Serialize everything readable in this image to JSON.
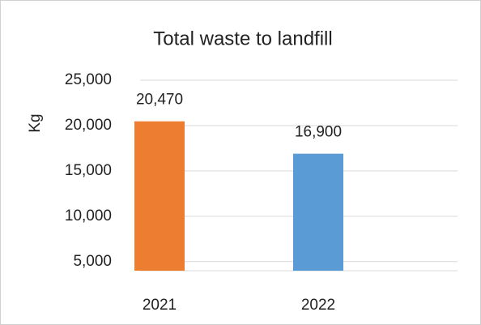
{
  "chart_data": {
    "type": "bar",
    "title": "Total waste to landfill",
    "y_label": "Kg",
    "categories": [
      "2021",
      "2022"
    ],
    "values": [
      20470,
      16900
    ],
    "value_labels": [
      "20,470",
      "16,900"
    ],
    "colors": [
      "#ed7d31",
      "#5b9bd5"
    ],
    "ylim": [
      4000,
      25000
    ],
    "yticks": [
      {
        "value": 5000,
        "label": "5,000"
      },
      {
        "value": 10000,
        "label": "10,000"
      },
      {
        "value": 15000,
        "label": "15,000"
      },
      {
        "value": 20000,
        "label": "20,000"
      },
      {
        "value": 25000,
        "label": "25,000"
      }
    ],
    "grid": true
  }
}
